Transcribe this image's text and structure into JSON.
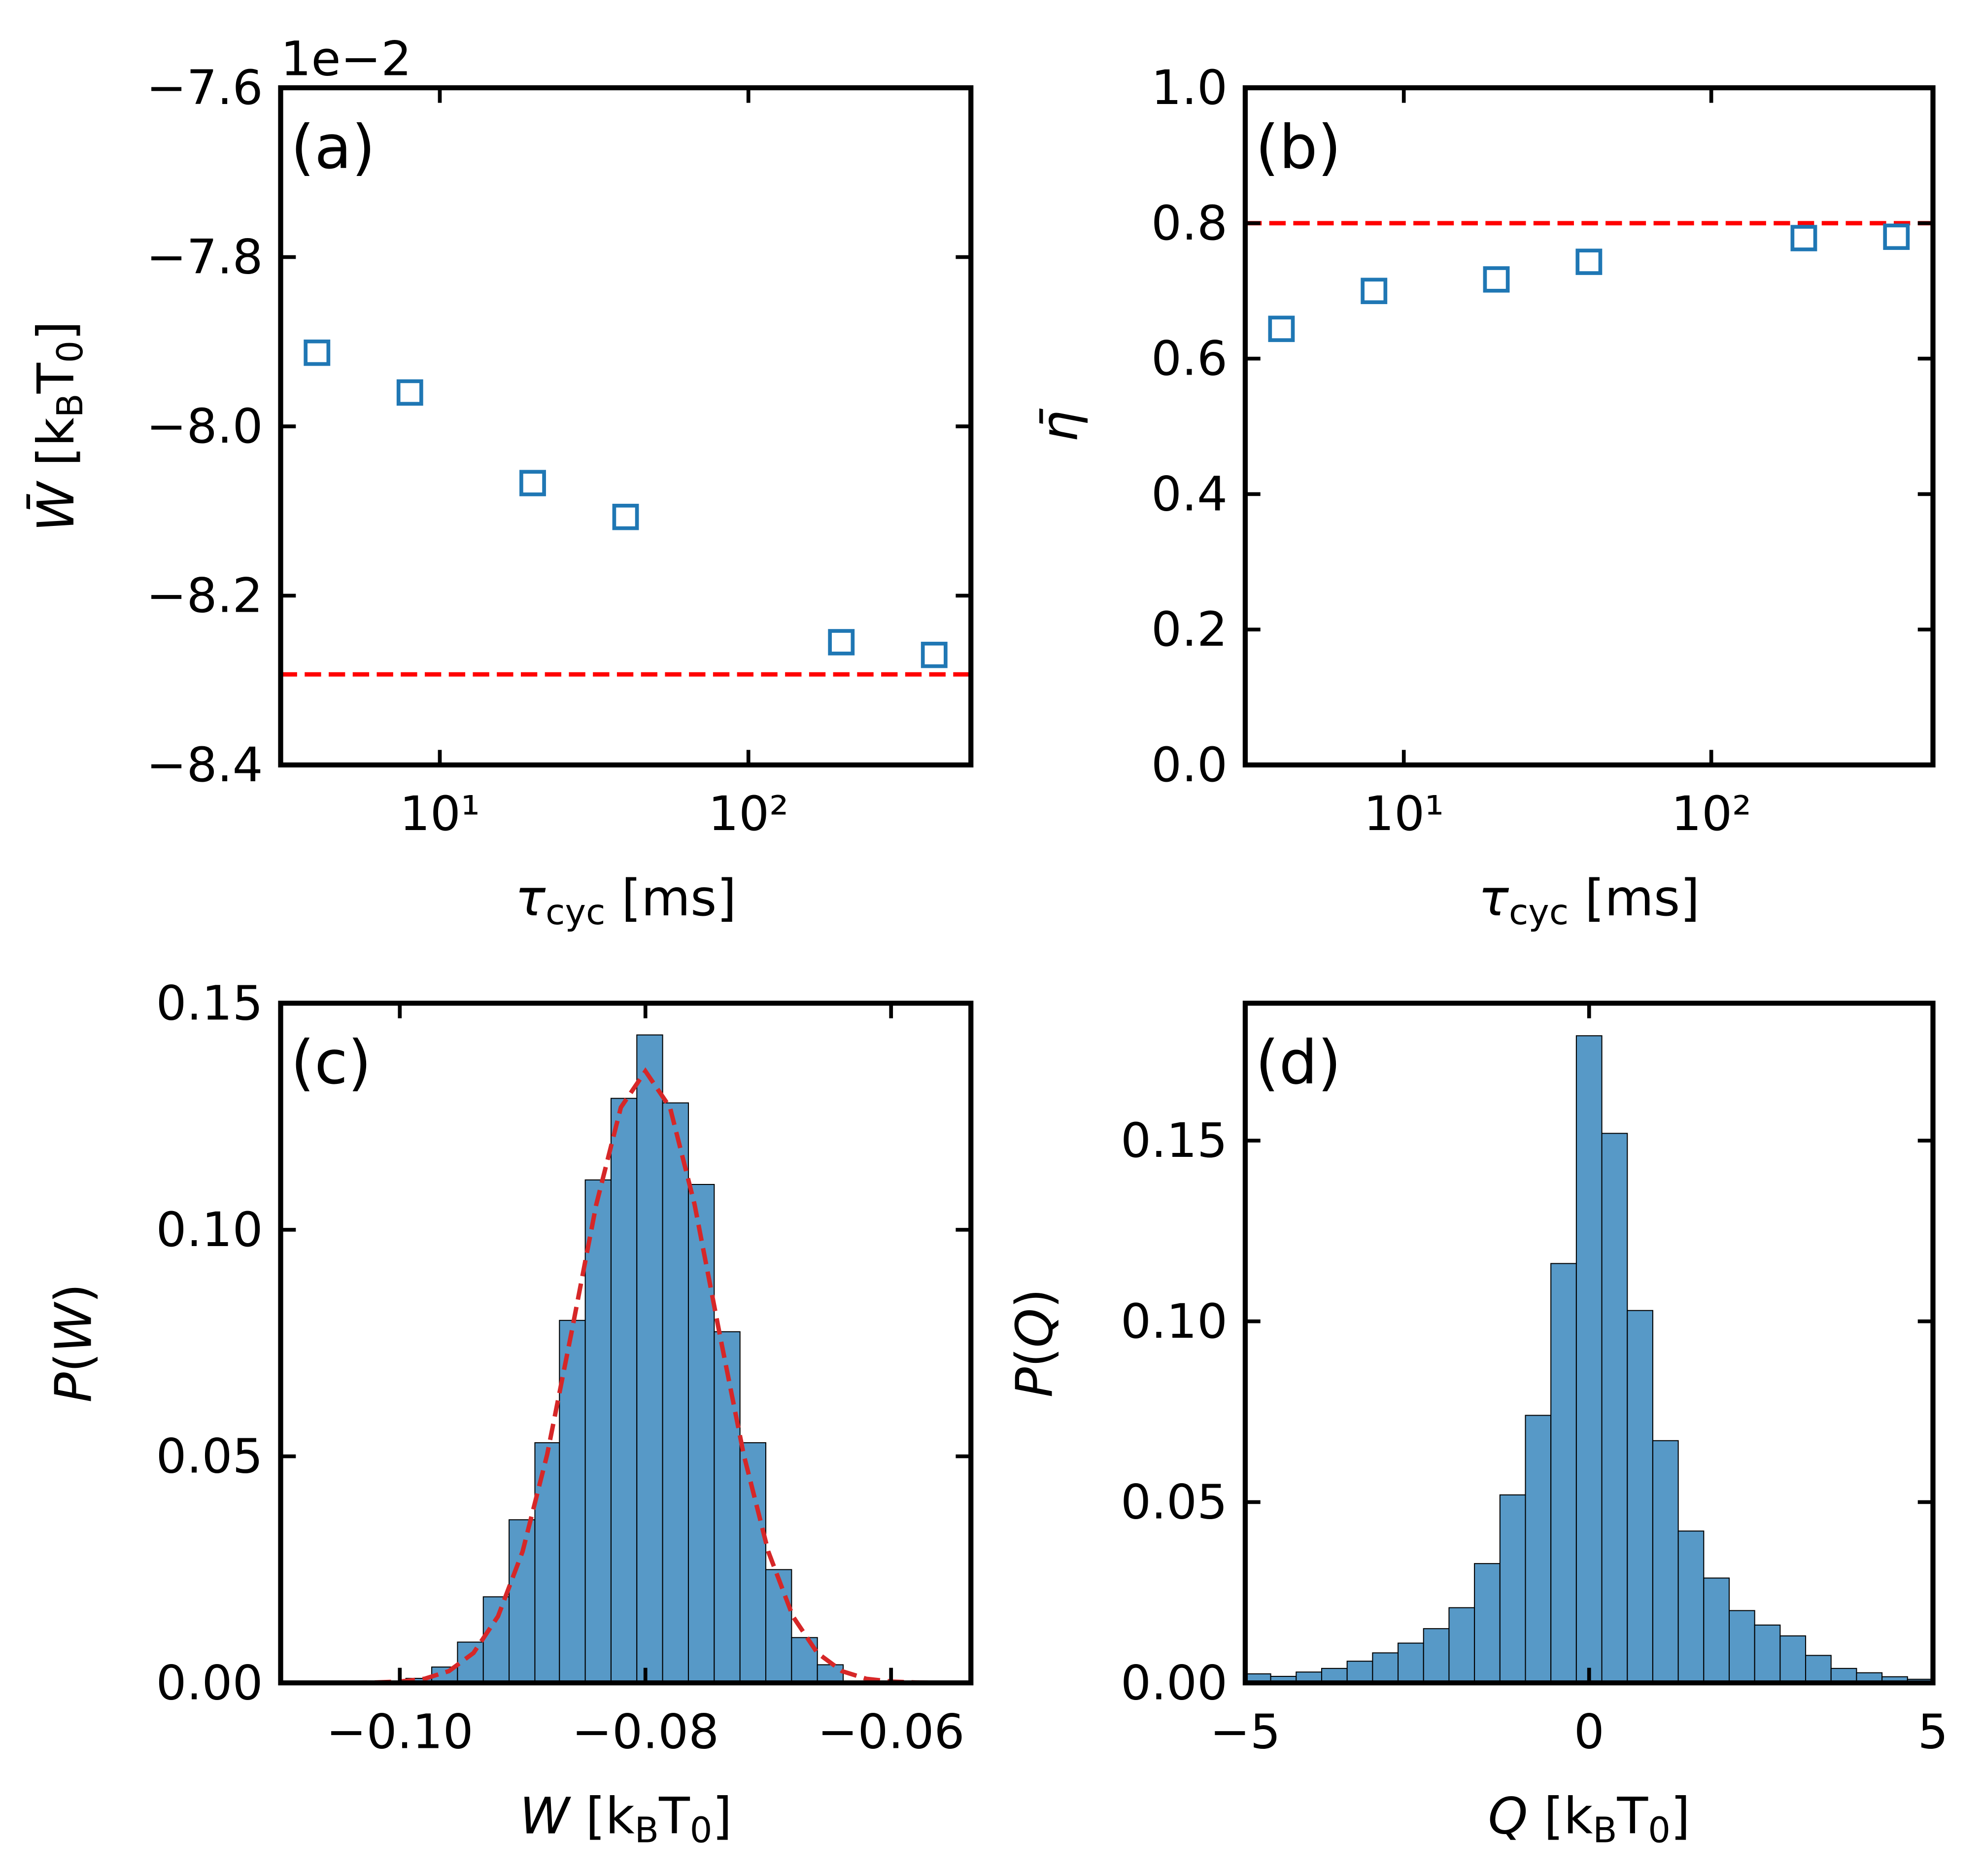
{
  "chart_data": [
    {
      "type": "scatter",
      "panel_label": "(a)",
      "offset_label": "1e−2",
      "xlabel": [
        {
          "text": "τ",
          "italic": true
        },
        {
          "text": "cyc",
          "sub": true
        },
        {
          "text": " [ms]"
        }
      ],
      "ylabel": [
        {
          "text": "W̄",
          "italic": true
        },
        {
          "text": " [k"
        },
        {
          "text": "B",
          "sub": true
        },
        {
          "text": "T"
        },
        {
          "text": "0",
          "sub": true
        },
        {
          "text": "]"
        }
      ],
      "x": [
        4,
        8,
        20,
        40,
        200,
        400
      ],
      "values": [
        -7.913,
        -7.96,
        -8.067,
        -8.107,
        -8.255,
        -8.27
      ],
      "color": "#1f77b4",
      "marker": "open-square",
      "xscale": "log",
      "xlim": [
        3.05,
        526
      ],
      "xticks": [
        {
          "value": 10,
          "label": "10¹"
        },
        {
          "value": 100,
          "label": "10²"
        }
      ],
      "ylim": [
        -8.4,
        -7.6
      ],
      "yticks": [
        {
          "value": -8.4,
          "label": "−8.4"
        },
        {
          "value": -8.2,
          "label": "−8.2"
        },
        {
          "value": -8.0,
          "label": "−8.0"
        },
        {
          "value": -7.8,
          "label": "−7.8"
        },
        {
          "value": -7.6,
          "label": "−7.6"
        }
      ],
      "hline": {
        "value": -8.293,
        "color": "#ff0000",
        "style": "dashed"
      }
    },
    {
      "type": "scatter",
      "panel_label": "(b)",
      "xlabel": [
        {
          "text": "τ",
          "italic": true
        },
        {
          "text": "cyc",
          "sub": true
        },
        {
          "text": " [ms]"
        }
      ],
      "ylabel": [
        {
          "text": "η̄",
          "italic": true
        }
      ],
      "x": [
        4,
        8,
        20,
        40,
        200,
        400
      ],
      "values": [
        0.644,
        0.7,
        0.717,
        0.743,
        0.778,
        0.78
      ],
      "color": "#1f77b4",
      "marker": "open-square",
      "xscale": "log",
      "xlim": [
        3.05,
        526
      ],
      "xticks": [
        {
          "value": 10,
          "label": "10¹"
        },
        {
          "value": 100,
          "label": "10²"
        }
      ],
      "ylim": [
        0,
        1
      ],
      "yticks": [
        {
          "value": 0,
          "label": "0.0"
        },
        0.2,
        0.4,
        0.6,
        0.8,
        {
          "value": 1,
          "label": "1.0"
        }
      ],
      "hline": {
        "value": 0.8,
        "color": "#ff0000",
        "style": "dashed"
      }
    },
    {
      "type": "histogram",
      "panel_label": "(c)",
      "xlabel": [
        {
          "text": "W",
          "italic": true
        },
        {
          "text": " [k"
        },
        {
          "text": "B",
          "sub": true
        },
        {
          "text": "T"
        },
        {
          "text": "0",
          "sub": true
        },
        {
          "text": "]"
        }
      ],
      "ylabel": [
        {
          "text": "P",
          "italic": true
        },
        {
          "text": "("
        },
        {
          "text": "W",
          "italic": true
        },
        {
          "text": ")"
        }
      ],
      "bins": [
        -0.0995,
        -0.0974,
        -0.0953,
        -0.0932,
        -0.0911,
        -0.089,
        -0.087,
        -0.0849,
        -0.0828,
        -0.0807,
        -0.0786,
        -0.0765,
        -0.0744,
        -0.0723,
        -0.0702,
        -0.0681,
        -0.066,
        -0.0639
      ],
      "values": [
        0.001,
        0.0035,
        0.009,
        0.019,
        0.036,
        0.053,
        0.08,
        0.111,
        0.129,
        0.143,
        0.128,
        0.11,
        0.0775,
        0.053,
        0.025,
        0.01,
        0.004
      ],
      "color": "#5799c7",
      "fit": {
        "x": [
          -0.104,
          -0.102,
          -0.1,
          -0.098,
          -0.096,
          -0.094,
          -0.092,
          -0.09,
          -0.088,
          -0.086,
          -0.084,
          -0.082,
          -0.08,
          -0.078,
          -0.076,
          -0.074,
          -0.072,
          -0.07,
          -0.068,
          -0.066,
          -0.064,
          -0.062,
          -0.06,
          -0.058,
          -0.056
        ],
        "values": [
          0,
          0.0001,
          0.0003,
          0.0009,
          0.0026,
          0.0066,
          0.0147,
          0.029,
          0.0504,
          0.0776,
          0.1056,
          0.127,
          0.135,
          0.127,
          0.1056,
          0.0776,
          0.0504,
          0.029,
          0.0147,
          0.0066,
          0.0026,
          0.0009,
          0.0003,
          0.0001,
          0
        ],
        "color": "#d62728",
        "style": "dashed"
      },
      "xlim": [
        -0.1097,
        -0.0535
      ],
      "xticks": [
        {
          "value": -0.1,
          "label": "−0.10"
        },
        {
          "value": -0.08,
          "label": "−0.08"
        },
        {
          "value": -0.06,
          "label": "−0.06"
        }
      ],
      "ylim": [
        0,
        0.15
      ],
      "yticks": [
        {
          "value": 0,
          "label": "0.00"
        },
        0.05,
        {
          "value": 0.1,
          "label": "0.10"
        },
        0.15
      ]
    },
    {
      "type": "histogram",
      "panel_label": "(d)",
      "xlabel": [
        {
          "text": "Q",
          "italic": true
        },
        {
          "text": " [k"
        },
        {
          "text": "B",
          "sub": true
        },
        {
          "text": "T"
        },
        {
          "text": "0",
          "sub": true
        },
        {
          "text": "]"
        }
      ],
      "ylabel": [
        {
          "text": "P",
          "italic": true
        },
        {
          "text": "("
        },
        {
          "text": "Q",
          "italic": true
        },
        {
          "text": ")"
        }
      ],
      "bins": [
        -5,
        -4.6296,
        -4.2593,
        -3.8889,
        -3.5185,
        -3.1481,
        -2.7778,
        -2.4074,
        -2.037,
        -1.6667,
        -1.2963,
        -0.9259,
        -0.5556,
        -0.1852,
        0.1852,
        0.5556,
        0.9259,
        1.2963,
        1.6667,
        2.037,
        2.4074,
        2.7778,
        3.1481,
        3.5185,
        3.8889,
        4.2593,
        4.6296,
        5
      ],
      "values": [
        0.0025,
        0.0018,
        0.003,
        0.004,
        0.006,
        0.0083,
        0.011,
        0.015,
        0.0208,
        0.033,
        0.052,
        0.074,
        0.116,
        0.179,
        0.152,
        0.103,
        0.067,
        0.042,
        0.029,
        0.02,
        0.016,
        0.013,
        0.0076,
        0.004,
        0.0028,
        0.0017,
        0.001
      ],
      "color": "#5799c7",
      "xlim": [
        -5,
        5
      ],
      "xticks": [
        {
          "value": -5,
          "label": "−5"
        },
        0,
        5
      ],
      "ylim": [
        0,
        0.188
      ],
      "yticks": [
        {
          "value": 0,
          "label": "0.00"
        },
        0.05,
        {
          "value": 0.1,
          "label": "0.10"
        },
        0.15
      ]
    }
  ]
}
